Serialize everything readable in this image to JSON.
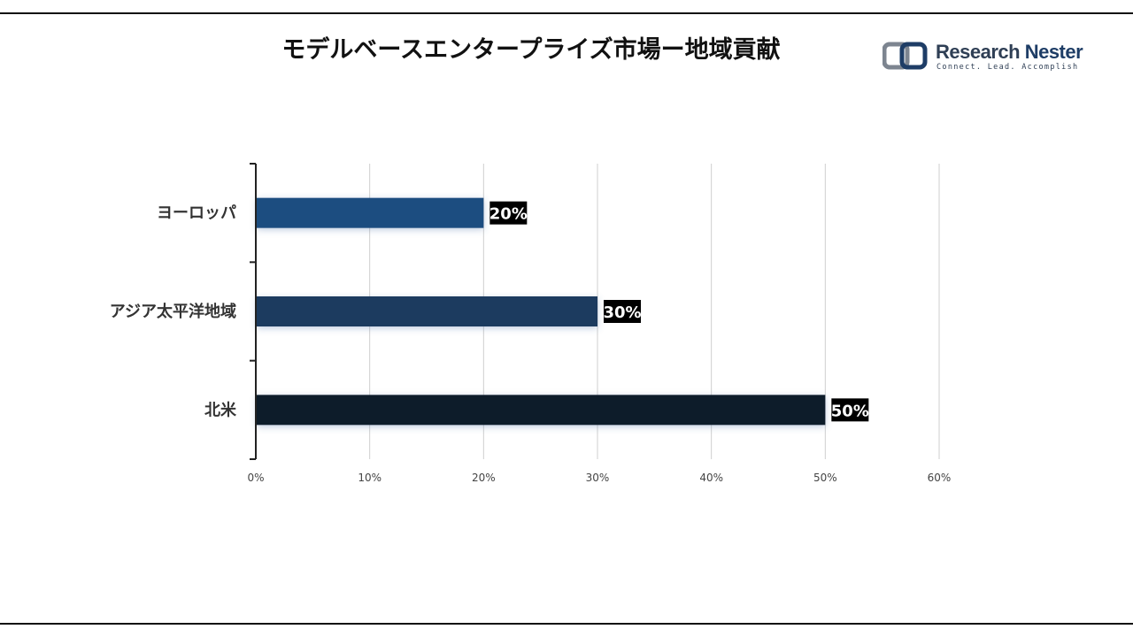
{
  "header": {
    "title": "モデルベースエンタープライズ市場ー地域貢献"
  },
  "logo": {
    "brand_first": "Research",
    "brand_second": "Nester",
    "tagline": "Connect. Lead. Accomplish",
    "icon": "research-nester-logo-icon"
  },
  "chart_data": {
    "type": "bar",
    "orientation": "horizontal",
    "categories": [
      "ヨーロッパ",
      "アジア太平洋地域",
      "北米"
    ],
    "values": [
      20,
      30,
      50
    ],
    "data_labels": [
      "20%",
      "30%",
      "50%"
    ],
    "colors": [
      "#1f4e80",
      "#1a3a5e",
      "#0e1c2c"
    ],
    "xlim": [
      0,
      60
    ],
    "x_ticks": [
      "0%",
      "10%",
      "20%",
      "30%",
      "40%",
      "50%",
      "60%"
    ],
    "grid": "vertical",
    "legend": "none"
  }
}
